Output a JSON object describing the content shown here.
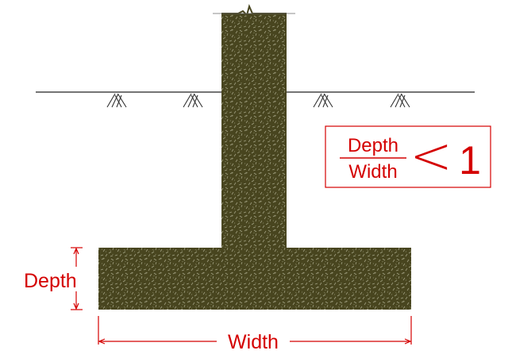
{
  "diagram": {
    "labels": {
      "depth": "Depth",
      "width": "Width"
    },
    "ratio_box": {
      "numerator": "Depth",
      "denominator": "Width",
      "comparator": "<",
      "value": "1"
    },
    "colors": {
      "concrete": "#48451f",
      "speckle": "#bdbda0",
      "annotation_red": "#d40000",
      "ground_line": "#222222"
    },
    "icons": [
      "ground-hatch-icon",
      "ground-hatch-icon",
      "ground-hatch-icon",
      "ground-hatch-icon"
    ]
  }
}
